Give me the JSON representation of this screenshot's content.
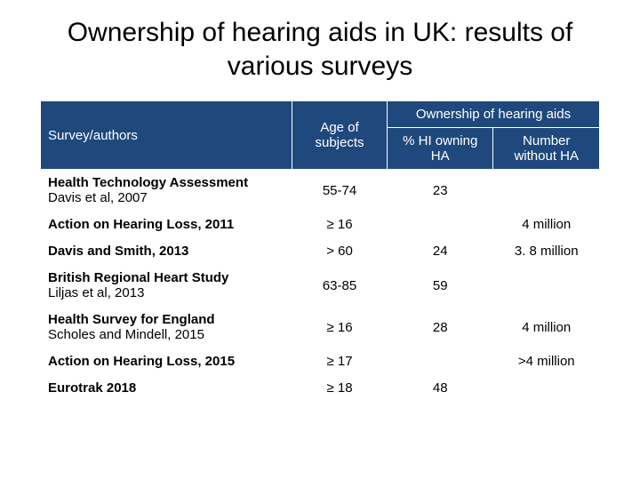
{
  "title": "Ownership of hearing aids in UK: results of various surveys",
  "headers": {
    "survey": "Survey/authors",
    "age": "Age of subjects",
    "ownership": "Ownership of hearing aids",
    "pct": "% HI owning HA",
    "num": "Number without HA"
  },
  "rows": [
    {
      "survey_l1": "Health Technology Assessment",
      "survey_l2": "Davis et al, 2007",
      "age": "55-74",
      "pct": "23",
      "num": ""
    },
    {
      "survey_l1": "Action on Hearing Loss, 2011",
      "survey_l2": "",
      "age": "≥ 16",
      "pct": "",
      "num": "4 million"
    },
    {
      "survey_l1": "Davis and Smith, 2013",
      "survey_l2": "",
      "age": "> 60",
      "pct": "24",
      "num": "3. 8 million"
    },
    {
      "survey_l1": "British Regional Heart Study",
      "survey_l2": "Liljas et al, 2013",
      "age": "63-85",
      "pct": "59",
      "num": ""
    },
    {
      "survey_l1": "Health Survey for England",
      "survey_l2": "Scholes and Mindell, 2015",
      "age": "≥ 16",
      "pct": "28",
      "num": "4 million"
    },
    {
      "survey_l1": "Action on Hearing Loss, 2015",
      "survey_l2": "",
      "age": "≥ 17",
      "pct": "",
      "num": ">4 million"
    },
    {
      "survey_l1": "Eurotrak 2018",
      "survey_l2": "",
      "age": "≥ 18",
      "pct": "48",
      "num": ""
    }
  ],
  "colors": {
    "header_bg": "#1f497d",
    "header_fg": "#ffffff",
    "body_bg": "#ffffff",
    "body_fg": "#000000",
    "border": "#ffffff"
  },
  "font_sizes": {
    "title": 30,
    "cell": 15
  }
}
